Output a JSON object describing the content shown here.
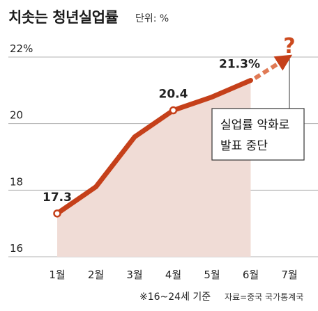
{
  "header": {
    "title": "치솟는 청년실업률",
    "unit": "단위: %"
  },
  "chart_data": {
    "type": "line",
    "title": "치솟는 청년실업률",
    "unit": "%",
    "categories": [
      "1월",
      "2월",
      "3월",
      "4월",
      "5월",
      "6월",
      "7월"
    ],
    "series": [
      {
        "values": [
          17.3,
          18.1,
          19.6,
          20.4,
          20.8,
          21.3,
          null
        ]
      }
    ],
    "projection": {
      "from": "6월",
      "to": "7월",
      "label": "?"
    },
    "data_labels": [
      {
        "category": "1월",
        "text": "17.3"
      },
      {
        "category": "4월",
        "text": "20.4"
      },
      {
        "category": "6월",
        "text": "21.3%"
      }
    ],
    "yticks": [
      {
        "value": 16,
        "label": "16"
      },
      {
        "value": 18,
        "label": "18"
      },
      {
        "value": 20,
        "label": "20"
      },
      {
        "value": 22,
        "label": "22%"
      }
    ],
    "ylim": [
      16,
      22
    ],
    "grid": true,
    "callout": {
      "line1": "실업률 악화로",
      "line2": "발표 중단"
    },
    "colors": {
      "line": "#c5401a",
      "projection": "#e07a55",
      "area": "#f0dcd6",
      "grid": "#b3b3b3"
    }
  },
  "footer": {
    "note": "※16~24세 기준",
    "source": "자료=중국 국가통계국"
  }
}
